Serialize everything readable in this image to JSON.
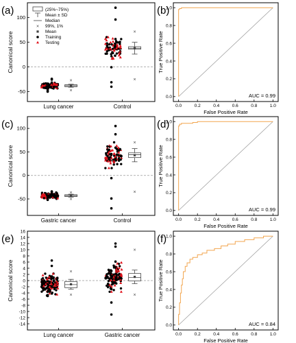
{
  "chart_data": [
    {
      "type": "scatter",
      "panel_label": "(a)",
      "ylabel": "Canonical score",
      "ylim": [
        -70,
        130
      ],
      "yticks": [
        -50,
        0,
        50,
        100
      ],
      "categories": [
        "Lung cancer",
        "Control"
      ],
      "groups": [
        {
          "name": "Lung cancer",
          "mean": -38,
          "sd": 3,
          "q1": -40,
          "q3": -36,
          "median": -38,
          "p1": -47,
          "p99": -27,
          "points_min": -50,
          "points_max": -24,
          "n": 130
        },
        {
          "name": "Control",
          "mean": 38,
          "sd": 12,
          "q1": 36,
          "q3": 41,
          "median": 38,
          "p1": -25,
          "p99": 72,
          "points_min": -40,
          "points_max": 120,
          "n": 90
        }
      ],
      "legend": {
        "box": "(25%~75%)",
        "whisker": "Mean ± SD",
        "median": "Median",
        "percentiles": "99%, 1%",
        "mean": "Mean",
        "training": "Training",
        "testing": "Testing"
      }
    },
    {
      "type": "line",
      "panel_label": "(b)",
      "xlabel": "False Positive Rate",
      "ylabel": "True Positive Rate",
      "xlim": [
        0,
        1
      ],
      "ylim": [
        0,
        1
      ],
      "xticks": [
        "0.0",
        "0.2",
        "0.4",
        "0.6",
        "0.8",
        "1.0"
      ],
      "yticks": [
        "0.0",
        "0.2",
        "0.4",
        "0.6",
        "0.8",
        "1.0"
      ],
      "auc_label": "AUC = 0.99",
      "roc": [
        [
          0,
          0
        ],
        [
          0,
          0.94
        ],
        [
          0.01,
          0.98
        ],
        [
          0.03,
          0.99
        ],
        [
          0.1,
          1.0
        ],
        [
          1.0,
          1.0
        ]
      ]
    },
    {
      "type": "scatter",
      "panel_label": "(c)",
      "ylabel": "Canonical score",
      "ylim": [
        -85,
        125
      ],
      "yticks": [
        -50,
        0,
        50,
        100
      ],
      "categories": [
        "Gastric cancer",
        "Control"
      ],
      "groups": [
        {
          "name": "Gastric cancer",
          "mean": -43,
          "sd": 3,
          "q1": -45,
          "q3": -41,
          "median": -43,
          "p1": -50,
          "p99": -36,
          "points_min": -52,
          "points_max": -34,
          "n": 140
        },
        {
          "name": "Control",
          "mean": 43,
          "sd": 14,
          "q1": 38,
          "q3": 48,
          "median": 44,
          "p1": -35,
          "p99": 70,
          "points_min": -70,
          "points_max": 105,
          "n": 100
        }
      ]
    },
    {
      "type": "line",
      "panel_label": "(d)",
      "xlabel": "False Positive Rate",
      "ylabel": "True Positive Rate",
      "xlim": [
        0,
        1
      ],
      "ylim": [
        0,
        1
      ],
      "xticks": [
        "0.0",
        "0.2",
        "0.4",
        "0.6",
        "0.8",
        "1.0"
      ],
      "yticks": [
        "0.0",
        "0.2",
        "0.4",
        "0.6",
        "0.8",
        "1.0"
      ],
      "auc_label": "AUC = 0.99",
      "roc": [
        [
          0,
          0
        ],
        [
          0,
          0.91
        ],
        [
          0.01,
          0.95
        ],
        [
          0.03,
          0.97
        ],
        [
          0.15,
          0.98
        ],
        [
          0.2,
          0.99
        ],
        [
          1.0,
          1.0
        ]
      ]
    },
    {
      "type": "scatter",
      "panel_label": "(e)",
      "ylabel": "Canonical score",
      "ylim": [
        -16,
        16
      ],
      "yticks": [
        -14,
        -12,
        -10,
        -8,
        -6,
        -4,
        -2,
        0,
        2,
        4,
        6,
        8,
        10,
        12,
        14,
        16
      ],
      "categories": [
        "Lung cancer",
        "Gastric cancer"
      ],
      "groups": [
        {
          "name": "Lung cancer",
          "mean": -1.2,
          "sd": 1.6,
          "q1": -2.3,
          "q3": -0.3,
          "median": -1.3,
          "p1": -4.5,
          "p99": 3,
          "points_min": -5,
          "points_max": 6.5,
          "n": 150
        },
        {
          "name": "Gastric cancer",
          "mean": 1.2,
          "sd": 2.2,
          "q1": -0.1,
          "q3": 2.3,
          "median": 1.0,
          "p1": -4.5,
          "p99": 10,
          "points_min": -11,
          "points_max": 12,
          "n": 130
        }
      ]
    },
    {
      "type": "line",
      "panel_label": "(f)",
      "xlabel": "False Positive Rate",
      "ylabel": "True Positive Rate",
      "xlim": [
        0,
        1
      ],
      "ylim": [
        0,
        1
      ],
      "xticks": [
        "0.0",
        "0.2",
        "0.4",
        "0.6",
        "0.8",
        "1.0"
      ],
      "yticks": [
        "0.0",
        "0.2",
        "0.4",
        "0.6",
        "0.8",
        "1.0"
      ],
      "auc_label": "AUC = 0.84",
      "roc": [
        [
          0,
          0
        ],
        [
          0.01,
          0.12
        ],
        [
          0.02,
          0.25
        ],
        [
          0.03,
          0.36
        ],
        [
          0.04,
          0.45
        ],
        [
          0.05,
          0.52
        ],
        [
          0.07,
          0.6
        ],
        [
          0.09,
          0.66
        ],
        [
          0.12,
          0.7
        ],
        [
          0.15,
          0.74
        ],
        [
          0.2,
          0.76
        ],
        [
          0.25,
          0.79
        ],
        [
          0.3,
          0.81
        ],
        [
          0.38,
          0.84
        ],
        [
          0.45,
          0.86
        ],
        [
          0.52,
          0.89
        ],
        [
          0.6,
          0.91
        ],
        [
          0.7,
          0.94
        ],
        [
          0.8,
          0.96
        ],
        [
          0.9,
          0.98
        ],
        [
          1.0,
          1.0
        ]
      ]
    }
  ],
  "colors": {
    "axis": "#000000",
    "training": "#000000",
    "testing": "#e0121b",
    "roc": "#f2a54e",
    "diagonal": "#9a9a9a",
    "zero_line": "#999999",
    "box": "#444444"
  }
}
